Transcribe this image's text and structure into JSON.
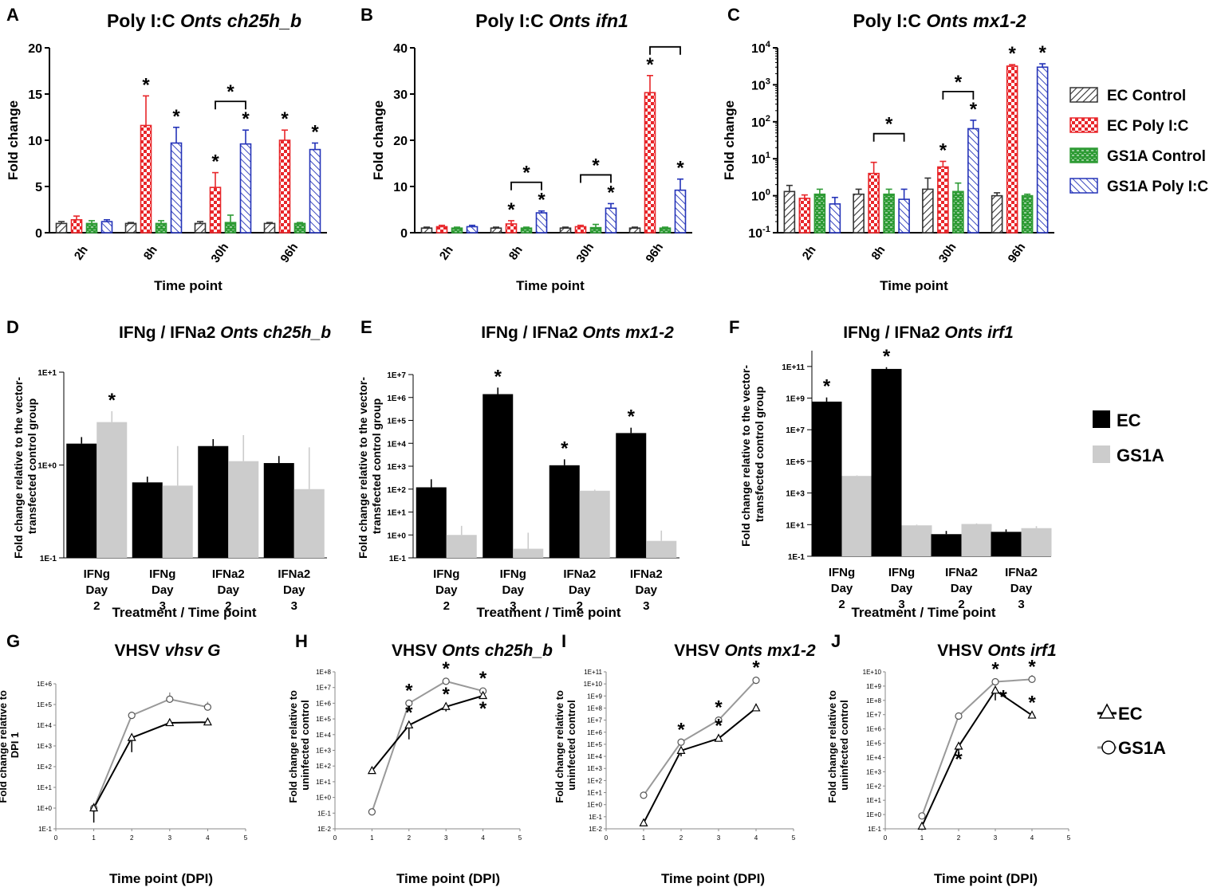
{
  "colors": {
    "ec_control": "#333333",
    "ec_polyic": "#e8262a",
    "gs1a_control": "#2e9b35",
    "gs1a_polyic": "#2433b8",
    "ec": "#000000",
    "gs1a": "#cccccc",
    "line_ec": "#000000",
    "line_gs1a": "#999999"
  },
  "legends": {
    "row1": [
      "EC Control",
      "EC Poly I:C",
      "GS1A Control",
      "GS1A Poly I:C"
    ],
    "row2": [
      "EC",
      "GS1A"
    ],
    "row3": [
      "EC",
      "GS1A"
    ]
  },
  "chart_data": [
    {
      "id": "A",
      "letter": "A",
      "type": "bar",
      "scale": "linear",
      "title_plain": "Poly I:C ",
      "title_italic": "Onts ch25h_b",
      "xlabel": "Time point",
      "ylabel": "Fold change",
      "ylim": [
        0,
        20
      ],
      "yticks": [
        0,
        5,
        10,
        15,
        20
      ],
      "ytick_labels": [
        "0",
        "5",
        "10",
        "15",
        "20"
      ],
      "categories": [
        "2h",
        "8h",
        "30h",
        "96h"
      ],
      "series": [
        {
          "name": "EC Control",
          "values": [
            1.0,
            1.0,
            1.0,
            1.0
          ],
          "err": [
            0.2,
            0.1,
            0.2,
            0.1
          ]
        },
        {
          "name": "EC Poly I:C",
          "values": [
            1.4,
            11.6,
            4.9,
            10.0
          ],
          "err": [
            0.4,
            3.2,
            1.6,
            1.1
          ]
        },
        {
          "name": "GS1A Control",
          "values": [
            1.0,
            1.0,
            1.1,
            1.0
          ],
          "err": [
            0.3,
            0.3,
            0.8,
            0.1
          ]
        },
        {
          "name": "GS1A Poly I:C",
          "values": [
            1.2,
            9.7,
            9.6,
            9.0
          ],
          "err": [
            0.2,
            1.7,
            1.5,
            0.7
          ]
        }
      ],
      "stars": [
        {
          "cat": 1,
          "series": 1
        },
        {
          "cat": 1,
          "series": 3
        },
        {
          "cat": 2,
          "series": 1
        },
        {
          "cat": 2,
          "series": 3
        },
        {
          "cat": 3,
          "series": 1
        },
        {
          "cat": 3,
          "series": 3
        }
      ],
      "brackets": [
        {
          "cat": 2,
          "from": 1,
          "to": 3,
          "label": "*"
        }
      ]
    },
    {
      "id": "B",
      "letter": "B",
      "type": "bar",
      "scale": "linear",
      "title_plain": "Poly I:C ",
      "title_italic": "Onts ifn1",
      "xlabel": "Time point",
      "ylabel": "Fold change",
      "ylim": [
        0,
        40
      ],
      "yticks": [
        0,
        10,
        20,
        30,
        40
      ],
      "ytick_labels": [
        "0",
        "10",
        "20",
        "30",
        "40"
      ],
      "categories": [
        "2h",
        "8h",
        "30h",
        "96h"
      ],
      "series": [
        {
          "name": "EC Control",
          "values": [
            1.0,
            1.0,
            1.0,
            1.0
          ],
          "err": [
            0.2,
            0.2,
            0.2,
            0.2
          ]
        },
        {
          "name": "EC Poly I:C",
          "values": [
            1.3,
            1.9,
            1.3,
            30.3
          ],
          "err": [
            0.3,
            0.7,
            0.3,
            3.7
          ]
        },
        {
          "name": "GS1A Control",
          "values": [
            1.0,
            1.0,
            1.1,
            1.0
          ],
          "err": [
            0.2,
            0.2,
            0.7,
            0.2
          ]
        },
        {
          "name": "GS1A Poly I:C",
          "values": [
            1.3,
            4.3,
            5.3,
            9.2
          ],
          "err": [
            0.3,
            0.4,
            1.0,
            2.4
          ]
        }
      ],
      "stars": [
        {
          "cat": 1,
          "series": 1
        },
        {
          "cat": 1,
          "series": 3
        },
        {
          "cat": 2,
          "series": 3
        },
        {
          "cat": 3,
          "series": 1
        },
        {
          "cat": 3,
          "series": 3
        }
      ],
      "brackets": [
        {
          "cat": 1,
          "from": 1,
          "to": 3,
          "label": "*"
        },
        {
          "cat": 2,
          "from": 1,
          "to": 3,
          "label": "*"
        },
        {
          "cat": 3,
          "from": 1,
          "to": 3,
          "label": ""
        }
      ]
    },
    {
      "id": "C",
      "letter": "C",
      "type": "bar",
      "scale": "log",
      "title_plain": "Poly I:C ",
      "title_italic": "Onts mx1-2",
      "xlabel": "Time point",
      "ylabel": "Fold change",
      "ylim": [
        0.1,
        10000
      ],
      "yticks": [
        0.1,
        1,
        10,
        100,
        1000,
        10000
      ],
      "ytick_labels": [
        "10^-1",
        "10^0",
        "10^1",
        "10^2",
        "10^3",
        "10^4"
      ],
      "categories": [
        "2h",
        "8h",
        "30h",
        "96h"
      ],
      "series": [
        {
          "name": "EC Control",
          "values": [
            1.3,
            1.1,
            1.5,
            1.0
          ],
          "err": [
            0.6,
            0.4,
            1.5,
            0.2
          ]
        },
        {
          "name": "EC Poly I:C",
          "values": [
            0.85,
            4.0,
            6.0,
            3200
          ],
          "err": [
            0.2,
            4.0,
            2.5,
            300
          ]
        },
        {
          "name": "GS1A Control",
          "values": [
            1.1,
            1.1,
            1.3,
            1.0
          ],
          "err": [
            0.4,
            0.4,
            0.9,
            0.1
          ]
        },
        {
          "name": "GS1A Poly I:C",
          "values": [
            0.6,
            0.8,
            65,
            3000
          ],
          "err": [
            0.3,
            0.7,
            45,
            700
          ]
        }
      ],
      "stars": [
        {
          "cat": 2,
          "series": 1
        },
        {
          "cat": 2,
          "series": 3
        },
        {
          "cat": 3,
          "series": 1
        },
        {
          "cat": 3,
          "series": 3
        }
      ],
      "brackets": [
        {
          "cat": 1,
          "from": 1,
          "to": 3,
          "label": "*"
        },
        {
          "cat": 2,
          "from": 1,
          "to": 3,
          "label": "*"
        }
      ]
    },
    {
      "id": "D",
      "letter": "D",
      "type": "bar",
      "scale": "log",
      "title_plain": "IFNg / IFNa2 ",
      "title_italic": "Onts ch25h_b",
      "xlabel": "Treatment / Time point",
      "ylabel": "Fold change relative to the vector-transfected control group",
      "ylabel_lines": [
        "Fold change relative to the vector-",
        "transfected control group"
      ],
      "ylim": [
        0.1,
        10
      ],
      "yticks": [
        0.1,
        1,
        10
      ],
      "ytick_labels": [
        "1E-1",
        "1E+0",
        "1E+1"
      ],
      "categories": [
        "IFNg Day 2",
        "IFNg Day 3",
        "IFNa2 Day 2",
        "IFNa2 Day 3"
      ],
      "series": [
        {
          "name": "EC",
          "values": [
            1.7,
            0.65,
            1.6,
            1.05
          ],
          "err": [
            0.3,
            0.1,
            0.3,
            0.2
          ]
        },
        {
          "name": "GS1A",
          "values": [
            2.9,
            0.6,
            1.1,
            0.55
          ],
          "err": [
            0.9,
            1.0,
            1.0,
            1.0
          ]
        }
      ],
      "stars": [
        {
          "cat": 0,
          "series": 1
        }
      ],
      "brackets": []
    },
    {
      "id": "E",
      "letter": "E",
      "type": "bar",
      "scale": "log",
      "title_plain": "IFNg / IFNa2 ",
      "title_italic": "Onts mx1-2",
      "xlabel": "Treatment / Time point",
      "ylabel": "Fold change relative to the vector-transfected control group",
      "ylabel_lines": [
        "Fold change relative to the vector-",
        "transfected control group"
      ],
      "ylim": [
        0.1,
        10000000
      ],
      "yticks": [
        0.1,
        1,
        10,
        100,
        1000,
        10000,
        100000,
        1000000,
        10000000
      ],
      "ytick_labels": [
        "1E-1",
        "1E+0",
        "1E+1",
        "1E+2",
        "1E+3",
        "1E+4",
        "1E+5",
        "1E+6",
        "1E+7"
      ],
      "categories": [
        "IFNg Day 2",
        "IFNg Day 3",
        "IFNa2 Day 2",
        "IFNa2 Day 3"
      ],
      "series": [
        {
          "name": "EC",
          "values": [
            120,
            1400000,
            1100,
            28000
          ],
          "err": [
            150,
            1300000,
            900,
            20000
          ]
        },
        {
          "name": "GS1A",
          "values": [
            1.0,
            0.25,
            85,
            0.55
          ],
          "err": [
            1.5,
            1.0,
            10,
            1.0
          ]
        }
      ],
      "stars": [
        {
          "cat": 1,
          "series": 0
        },
        {
          "cat": 2,
          "series": 0
        },
        {
          "cat": 3,
          "series": 0
        }
      ],
      "brackets": []
    },
    {
      "id": "F",
      "letter": "F",
      "type": "bar",
      "scale": "log",
      "title_plain": "IFNg / IFNa2 ",
      "title_italic": "Onts irf1",
      "xlabel": "Treatment / Time point",
      "ylabel": "Fold change relative to the vector-transfected control group",
      "ylabel_lines": [
        "Fold change relative to the vector-",
        "transfected control group"
      ],
      "ylim": [
        0.1,
        1000000000000
      ],
      "yticks": [
        0.1,
        10,
        1000,
        100000,
        10000000,
        1000000000,
        100000000000
      ],
      "ytick_labels": [
        "1E-1",
        "1E+1",
        "1E+3",
        "1E+5",
        "1E+7",
        "1E+9",
        "1E+11"
      ],
      "categories": [
        "IFNg Day 2",
        "IFNg Day 3",
        "IFNa2 Day 2",
        "IFNa2 Day 3"
      ],
      "series": [
        {
          "name": "EC",
          "values": [
            600000000,
            70000000000,
            2.5,
            3.5
          ],
          "err": [
            500000000,
            20000000000,
            1.5,
            1.5
          ]
        },
        {
          "name": "GS1A",
          "values": [
            12000,
            9,
            11,
            6
          ],
          "err": [
            1000,
            1,
            1,
            2
          ]
        }
      ],
      "stars": [
        {
          "cat": 0,
          "series": 0
        },
        {
          "cat": 1,
          "series": 0
        }
      ],
      "brackets": []
    },
    {
      "id": "G",
      "letter": "G",
      "type": "line",
      "scale": "log",
      "title_plain": "VHSV ",
      "title_italic": "vhsv G",
      "xlabel": "Time point (DPI)",
      "ylabel": "Fold change relative to DPI 1",
      "ylabel_lines": [
        "Fold change relative to",
        "DPI 1"
      ],
      "xlim": [
        0,
        5
      ],
      "xticks": [
        0,
        1,
        2,
        3,
        4,
        5
      ],
      "ylim": [
        0.1,
        1000000
      ],
      "yticks": [
        0.1,
        1,
        10,
        100,
        1000,
        10000,
        100000,
        1000000
      ],
      "ytick_labels": [
        "1E-1",
        "1E+0",
        "1E+1",
        "1E+2",
        "1E+3",
        "1E+4",
        "1E+5",
        "1E+6"
      ],
      "x": [
        1,
        2,
        3,
        4
      ],
      "series": [
        {
          "name": "EC",
          "marker": "triangle",
          "values": [
            1,
            2500,
            13000,
            14000
          ],
          "err": [
            0.8,
            2000,
            0,
            0
          ]
        },
        {
          "name": "GS1A",
          "marker": "circle",
          "values": [
            1,
            30000,
            180000,
            75000
          ],
          "err": [
            0.8,
            15000,
            200000,
            60000
          ]
        }
      ],
      "stars": []
    },
    {
      "id": "H",
      "letter": "H",
      "type": "line",
      "scale": "log",
      "title_plain": "VHSV ",
      "title_italic": "Onts ch25h_b",
      "xlabel": "Time point (DPI)",
      "ylabel": "Fold change relative to uninfected control",
      "ylabel_lines": [
        "Fold change relative to",
        "uninfected control"
      ],
      "xlim": [
        0,
        5
      ],
      "xticks": [
        0,
        1,
        2,
        3,
        4,
        5
      ],
      "ylim": [
        0.01,
        100000000
      ],
      "yticks": [
        0.01,
        0.1,
        1,
        10,
        100,
        1000,
        10000,
        100000,
        1000000,
        10000000,
        100000000
      ],
      "ytick_labels": [
        "1E-2",
        "1E-1",
        "1E+0",
        "1E+1",
        "1E+2",
        "1E+3",
        "1E+4",
        "1E+5",
        "1E+6",
        "1E+7",
        "1E+8"
      ],
      "x": [
        1,
        2,
        3,
        4
      ],
      "series": [
        {
          "name": "EC",
          "marker": "triangle",
          "values": [
            50,
            40000,
            600000,
            3000000
          ],
          "err": [
            0,
            35000,
            300000,
            0
          ]
        },
        {
          "name": "GS1A",
          "marker": "circle",
          "values": [
            0.12,
            1000000,
            25000000,
            6000000
          ],
          "err": [
            0,
            0,
            0,
            0
          ]
        }
      ],
      "stars": [
        {
          "x": 2,
          "series": 1,
          "pos": "above"
        },
        {
          "x": 2,
          "series": 0,
          "pos": "above"
        },
        {
          "x": 3,
          "series": 1,
          "pos": "above"
        },
        {
          "x": 3,
          "series": 0,
          "pos": "above"
        },
        {
          "x": 4,
          "series": 1,
          "pos": "above"
        },
        {
          "x": 4,
          "series": 0,
          "pos": "below"
        }
      ]
    },
    {
      "id": "I",
      "letter": "I",
      "type": "line",
      "scale": "log",
      "title_plain": "VHSV ",
      "title_italic": "Onts mx1-2",
      "xlabel": "Time point (DPI)",
      "ylabel": "Fold change relative to uninfected control",
      "ylabel_lines": [
        "Fold change relative to",
        "uninfected control"
      ],
      "xlim": [
        0,
        5
      ],
      "xticks": [
        0,
        1,
        2,
        3,
        4,
        5
      ],
      "ylim": [
        0.01,
        100000000000
      ],
      "yticks": [
        0.01,
        0.1,
        1,
        10,
        100,
        1000,
        10000,
        100000,
        1000000,
        10000000,
        100000000,
        1000000000,
        10000000000,
        100000000000
      ],
      "ytick_labels": [
        "1E-2",
        "1E-1",
        "1E+0",
        "1E+1",
        "1E+2",
        "1E+3",
        "1E+4",
        "1E+5",
        "1E+6",
        "1E+7",
        "1E+8",
        "1E+9",
        "1E+10",
        "1E+11"
      ],
      "x": [
        1,
        2,
        3,
        4
      ],
      "series": [
        {
          "name": "EC",
          "marker": "triangle",
          "values": [
            0.03,
            30000,
            300000,
            100000000
          ],
          "err": [
            0,
            20000,
            0,
            0
          ]
        },
        {
          "name": "GS1A",
          "marker": "circle",
          "values": [
            6,
            150000,
            10000000,
            20000000000
          ],
          "err": [
            0,
            0,
            0,
            0
          ]
        }
      ],
      "stars": [
        {
          "x": 2,
          "series": 1,
          "pos": "above"
        },
        {
          "x": 3,
          "series": 1,
          "pos": "above"
        },
        {
          "x": 3,
          "series": 0,
          "pos": "above"
        },
        {
          "x": 4,
          "series": 1,
          "pos": "above"
        }
      ]
    },
    {
      "id": "J",
      "letter": "J",
      "type": "line",
      "scale": "log",
      "title_plain": "VHSV ",
      "title_italic": "Onts irf1",
      "xlabel": "Time point (DPI)",
      "ylabel": "Fold change relative to uninfected control",
      "ylabel_lines": [
        "Fold change relative to",
        "uninfected control"
      ],
      "xlim": [
        0,
        5
      ],
      "xticks": [
        0,
        1,
        2,
        3,
        4,
        5
      ],
      "ylim": [
        0.1,
        10000000000
      ],
      "yticks": [
        0.1,
        1,
        10,
        100,
        1000,
        10000,
        100000,
        1000000,
        10000000,
        100000000,
        1000000000,
        10000000000
      ],
      "ytick_labels": [
        "1E-1",
        "1E+0",
        "1E+1",
        "1E+2",
        "1E+3",
        "1E+4",
        "1E+5",
        "1E+6",
        "1E+7",
        "1E+8",
        "1E+9",
        "1E+10"
      ],
      "x": [
        1,
        2,
        3,
        4
      ],
      "series": [
        {
          "name": "EC",
          "marker": "triangle",
          "values": [
            0.15,
            60000,
            500000000,
            9000000
          ],
          "err": [
            0,
            50000,
            400000000,
            0
          ]
        },
        {
          "name": "GS1A",
          "marker": "circle",
          "values": [
            0.8,
            8000000,
            2000000000,
            3000000000
          ],
          "err": [
            0,
            5000000,
            0,
            3000000000
          ]
        }
      ],
      "stars": [
        {
          "x": 2,
          "series": 0,
          "pos": "below"
        },
        {
          "x": 3,
          "series": 1,
          "pos": "above"
        },
        {
          "x": 3,
          "series": 0,
          "pos": "right"
        },
        {
          "x": 4,
          "series": 1,
          "pos": "above"
        },
        {
          "x": 4,
          "series": 0,
          "pos": "above"
        }
      ]
    }
  ]
}
